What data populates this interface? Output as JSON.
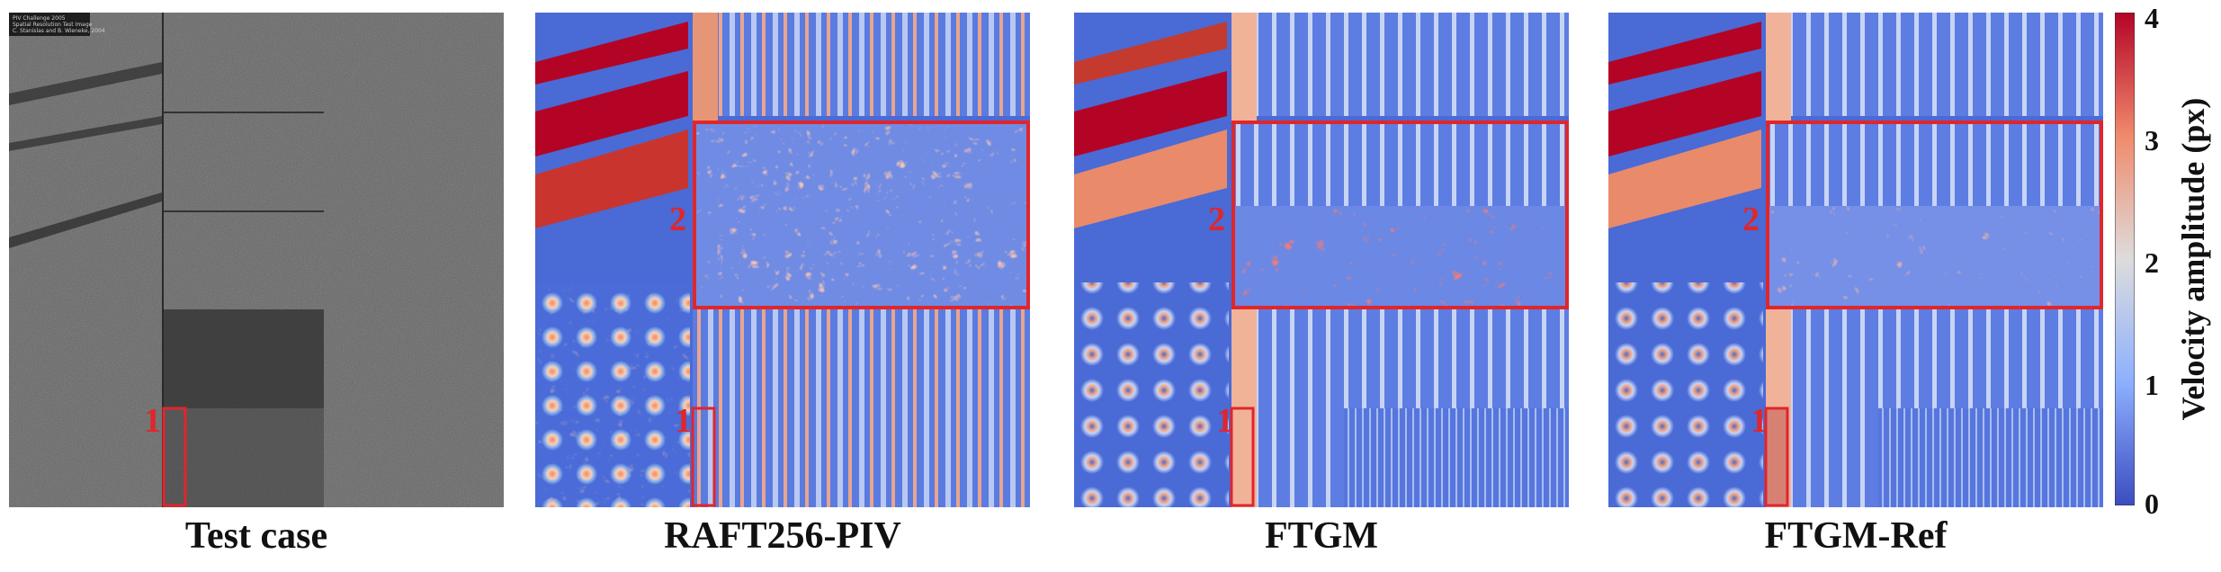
{
  "panels": [
    {
      "id": "test-case",
      "caption": "Test case"
    },
    {
      "id": "raft256-piv",
      "caption": "RAFT256-PIV"
    },
    {
      "id": "ftgm",
      "caption": "FTGM"
    },
    {
      "id": "ftgm-ref",
      "caption": "FTGM-Ref"
    }
  ],
  "region_labels": {
    "one": "1",
    "two": "2"
  },
  "test_image_text": {
    "line1": "PIV Challenge 2005",
    "line2": "Spatial Resolution Test Image",
    "line3": "C. Stanislas and B. Wieneke, 2004"
  },
  "colorbar": {
    "title": "Velocity amplitude (px)",
    "ticks": [
      "4",
      "3",
      "2",
      "1",
      "0"
    ],
    "colors": {
      "low": "#3b4cc0",
      "mid": "#dddcdc",
      "high": "#b40426"
    }
  },
  "annotation_color": "#e0262b"
}
